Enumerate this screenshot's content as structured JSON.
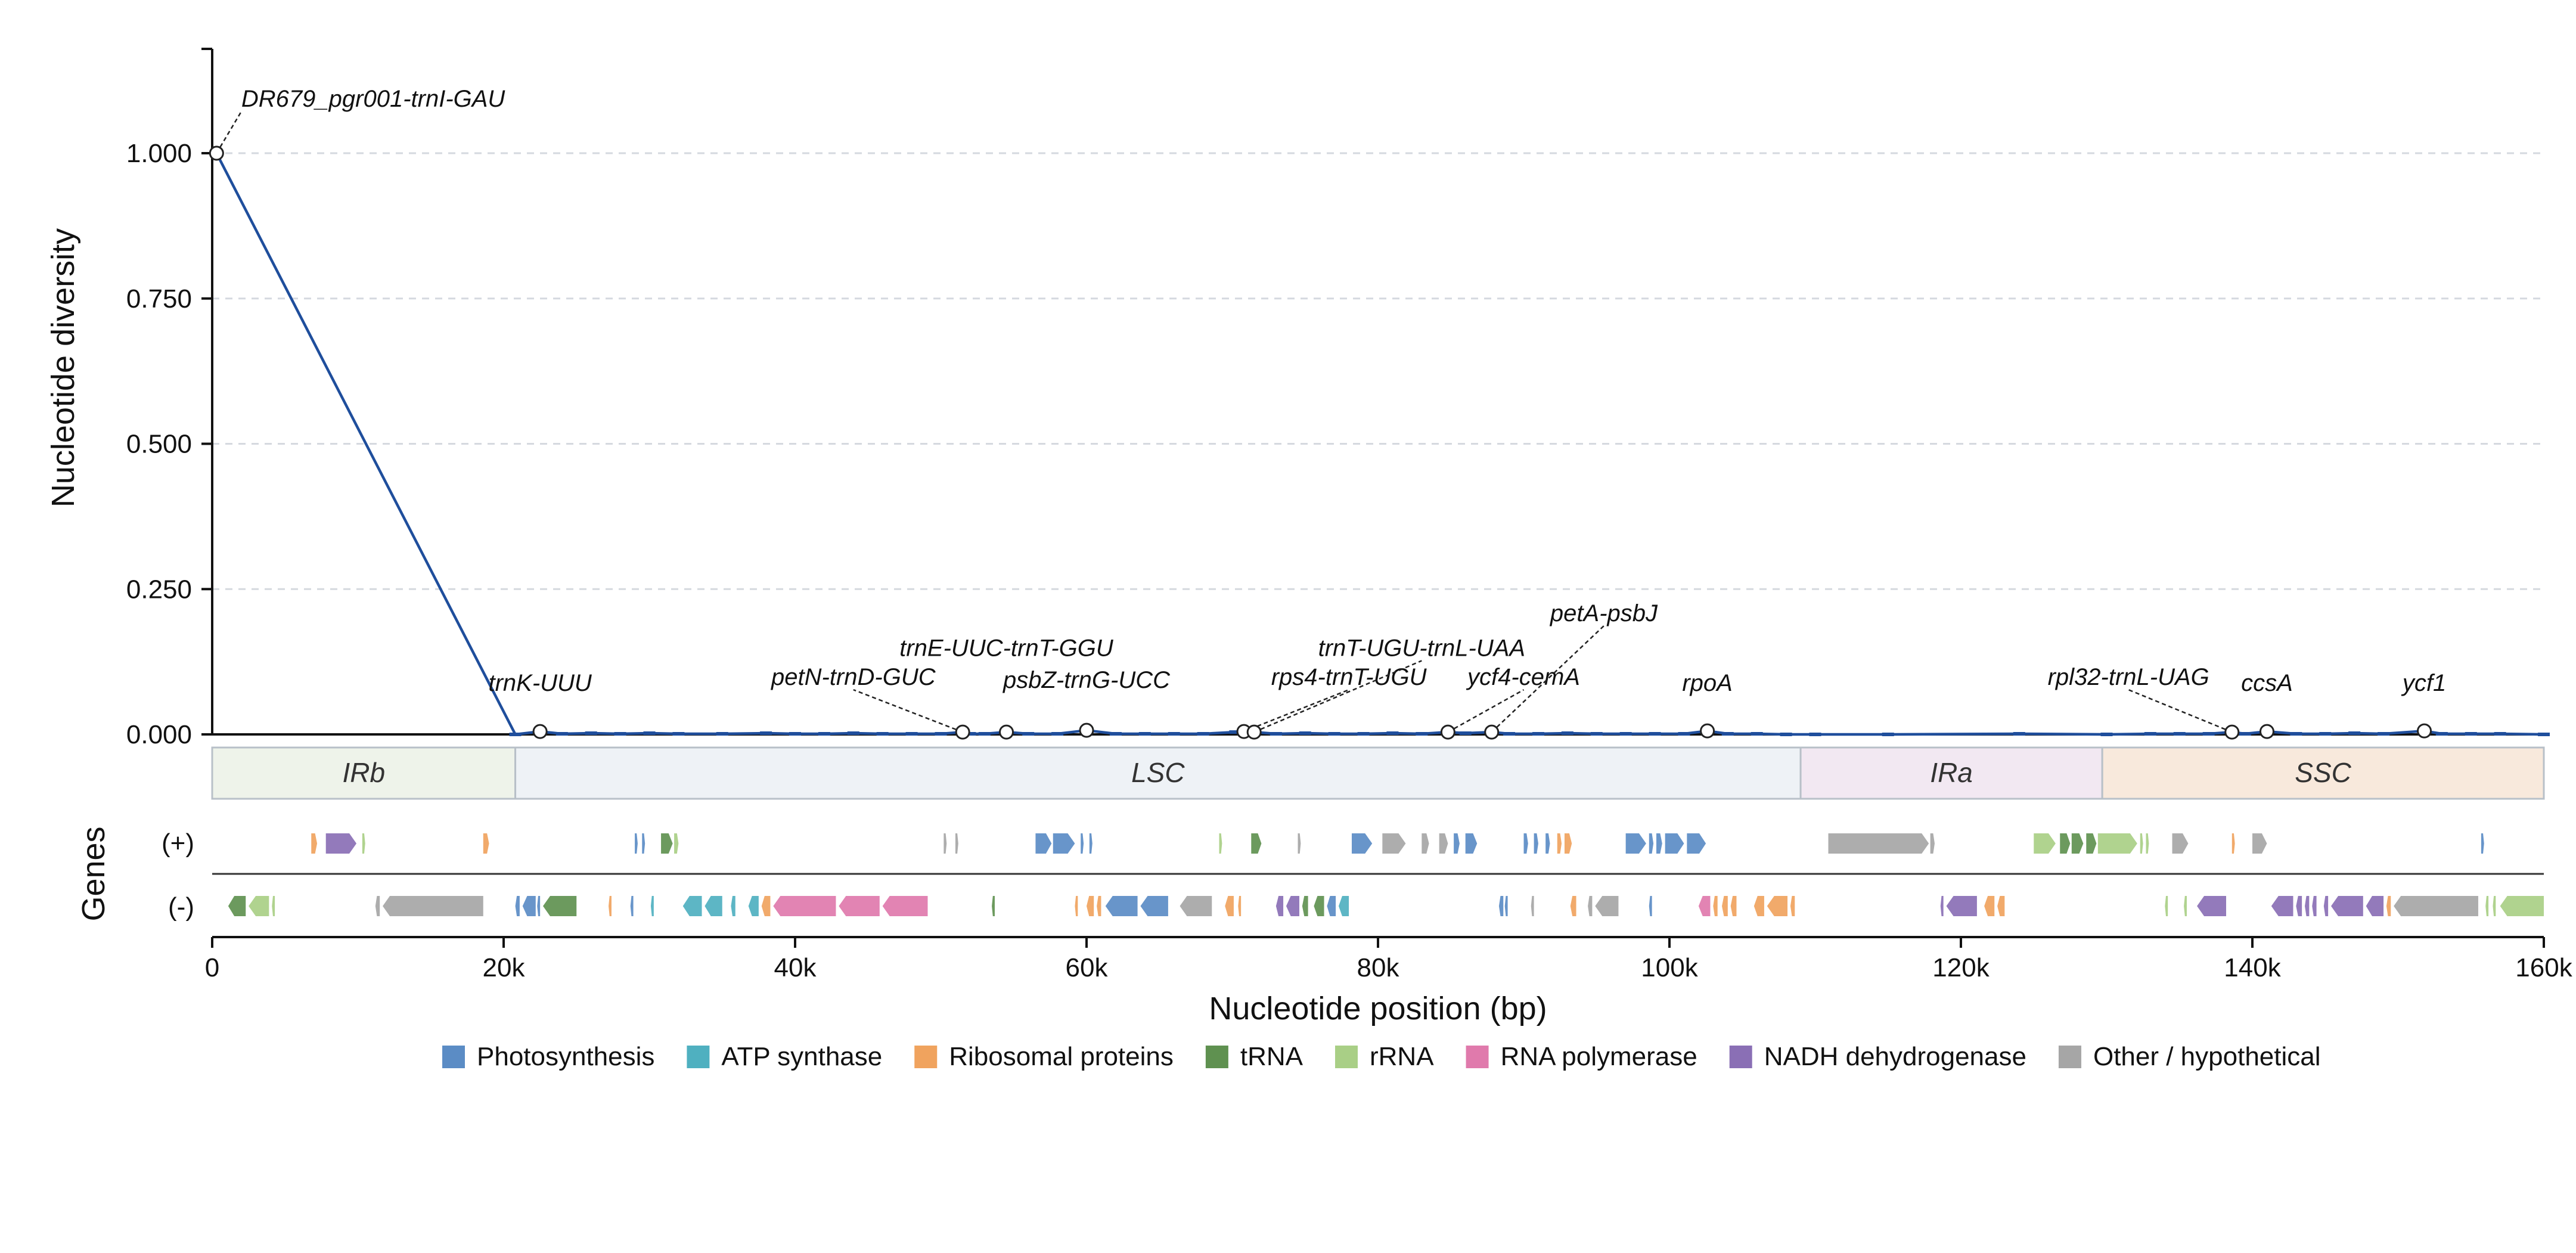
{
  "chart_data": {
    "type": "line",
    "ylabel": "Nucleotide diversity",
    "xlabel": "Nucleotide position (bp)",
    "genes_label": "Genes",
    "strand_labels": [
      "(+)",
      "(-)"
    ],
    "ylim": [
      0,
      1.2
    ],
    "xlim": [
      0,
      160000
    ],
    "grid": "horizontal dashed",
    "y_ticks": [
      0,
      0.25,
      0.5,
      0.75,
      1.0
    ],
    "y_tick_labels": [
      "0.000",
      "0.250",
      "0.500",
      "0.750",
      "1.000"
    ],
    "x_ticks": [
      0,
      20000,
      40000,
      60000,
      80000,
      100000,
      120000,
      140000,
      160000
    ],
    "x_tick_labels": [
      "0",
      "20k",
      "40k",
      "60k",
      "80k",
      "100k",
      "120k",
      "140k",
      "160k"
    ],
    "line_color": "#1f4e9c",
    "series": [
      {
        "x": [
          300,
          20800,
          22500,
          24000,
          26000,
          28000,
          30000,
          32000,
          35000,
          38000,
          40000,
          42000,
          44000,
          46000,
          48000,
          50000,
          51500,
          52000,
          53000,
          54500,
          56000,
          58000,
          60000,
          62000,
          64000,
          66000,
          68000,
          70200,
          70800,
          71500,
          73000,
          75000,
          77000,
          79000,
          81000,
          83000,
          84800,
          86000,
          87800,
          89000,
          91000,
          93000,
          95000,
          97000,
          99000,
          101000,
          102600,
          104000,
          106000,
          108000,
          110000,
          115000,
          124000,
          130000,
          133000,
          135000,
          137000,
          138600,
          139500,
          141000,
          143000,
          145000,
          147000,
          149000,
          151800,
          153000,
          155000,
          157000,
          160000
        ],
        "y": [
          1.0,
          0.0,
          0.005,
          0.001,
          0.002,
          0.001,
          0.002,
          0.001,
          0.001,
          0.002,
          0.001,
          0.001,
          0.002,
          0.001,
          0.001,
          0.001,
          0.004,
          0.001,
          0.001,
          0.004,
          0.001,
          0.001,
          0.007,
          0.001,
          0.001,
          0.001,
          0.001,
          0.004,
          0.005,
          0.004,
          0.001,
          0.002,
          0.001,
          0.001,
          0.002,
          0.001,
          0.004,
          0.002,
          0.004,
          0.001,
          0.001,
          0.002,
          0.001,
          0.001,
          0.001,
          0.001,
          0.006,
          0.001,
          0.001,
          0.0,
          0.0,
          0.0,
          0.001,
          0.0,
          0.001,
          0.001,
          0.001,
          0.004,
          0.001,
          0.005,
          0.001,
          0.001,
          0.002,
          0.001,
          0.006,
          0.001,
          0.001,
          0.001,
          0.0
        ]
      }
    ],
    "peaks": [
      {
        "label": "DR679_pgr001-trnI-GAU",
        "x": 300,
        "y": 1.0,
        "lx": 2000,
        "ly": 1.08,
        "leader": true
      },
      {
        "label": "trnK-UUU",
        "x": 22500,
        "y": 0.005,
        "lx": 22500,
        "ly": 0.075,
        "leader": false
      },
      {
        "label": "petN-trnD-GUC",
        "x": 51500,
        "y": 0.004,
        "lx": 44000,
        "ly": 0.085,
        "leader": true
      },
      {
        "label": "trnE-UUC-trnT-GGU",
        "x": 54500,
        "y": 0.004,
        "lx": 54500,
        "ly": 0.135,
        "leader": false
      },
      {
        "label": "psbZ-trnG-UCC",
        "x": 60000,
        "y": 0.007,
        "lx": 60000,
        "ly": 0.08,
        "leader": false
      },
      {
        "label": "rps4-trnT-UGU",
        "x": 70800,
        "y": 0.005,
        "lx": 78000,
        "ly": 0.085,
        "leader": true
      },
      {
        "label": "trnT-UGU-trnL-UAA",
        "x": 71500,
        "y": 0.004,
        "lx": 83000,
        "ly": 0.135,
        "leader": true
      },
      {
        "label": "ycf4-cemA",
        "x": 84800,
        "y": 0.004,
        "lx": 90000,
        "ly": 0.085,
        "leader": true
      },
      {
        "label": "petA-psbJ",
        "x": 87800,
        "y": 0.004,
        "lx": 95500,
        "ly": 0.195,
        "leader": true
      },
      {
        "label": "rpoA",
        "x": 102600,
        "y": 0.006,
        "lx": 102600,
        "ly": 0.075,
        "leader": false
      },
      {
        "label": "rpl32-trnL-UAG",
        "x": 138600,
        "y": 0.004,
        "lx": 131500,
        "ly": 0.085,
        "leader": true
      },
      {
        "label": "ccsA",
        "x": 141000,
        "y": 0.005,
        "lx": 141000,
        "ly": 0.075,
        "leader": false
      },
      {
        "label": "ycf1",
        "x": 151800,
        "y": 0.006,
        "lx": 151800,
        "ly": 0.075,
        "leader": false
      }
    ],
    "regions": [
      {
        "name": "IRb",
        "start": 0,
        "end": 20800,
        "color": "#eef3ea"
      },
      {
        "name": "LSC",
        "start": 20800,
        "end": 109000,
        "color": "#eef2f6"
      },
      {
        "name": "IRa",
        "start": 109000,
        "end": 129700,
        "color": "#f2e8f2"
      },
      {
        "name": "SSC",
        "start": 129700,
        "end": 160000,
        "color": "#f8e9dc"
      }
    ],
    "legend": [
      {
        "name": "Photosynthesis",
        "color": "#5b8cc5"
      },
      {
        "name": "ATP synthase",
        "color": "#4fb0c0"
      },
      {
        "name": "Ribosomal proteins",
        "color": "#f0a35e"
      },
      {
        "name": "tRNA",
        "color": "#5f9150"
      },
      {
        "name": "rRNA",
        "color": "#a9cf86"
      },
      {
        "name": "RNA polymerase",
        "color": "#e07aac"
      },
      {
        "name": "NADH dehydrogenase",
        "color": "#8a6fb5"
      },
      {
        "name": "Other / hypothetical",
        "color": "#a6a6a6"
      }
    ],
    "genes": [
      {
        "strand": "+",
        "start": 6800,
        "end": 7200,
        "cat": 2
      },
      {
        "strand": "+",
        "start": 7800,
        "end": 9900,
        "cat": 6
      },
      {
        "strand": "+",
        "start": 10300,
        "end": 10500,
        "cat": 4
      },
      {
        "strand": "+",
        "start": 18600,
        "end": 19000,
        "cat": 2
      },
      {
        "strand": "+",
        "start": 29000,
        "end": 29200,
        "cat": 0
      },
      {
        "strand": "+",
        "start": 29500,
        "end": 29700,
        "cat": 0
      },
      {
        "strand": "+",
        "start": 30800,
        "end": 31600,
        "cat": 3
      },
      {
        "strand": "+",
        "start": 31700,
        "end": 32000,
        "cat": 4
      },
      {
        "strand": "+",
        "start": 50200,
        "end": 50400,
        "cat": 7
      },
      {
        "strand": "+",
        "start": 51000,
        "end": 51200,
        "cat": 7
      },
      {
        "strand": "+",
        "start": 56500,
        "end": 57600,
        "cat": 0
      },
      {
        "strand": "+",
        "start": 57700,
        "end": 59200,
        "cat": 0
      },
      {
        "strand": "+",
        "start": 59600,
        "end": 59800,
        "cat": 0
      },
      {
        "strand": "+",
        "start": 60200,
        "end": 60400,
        "cat": 0
      },
      {
        "strand": "+",
        "start": 69100,
        "end": 69300,
        "cat": 4
      },
      {
        "strand": "+",
        "start": 71300,
        "end": 72000,
        "cat": 3
      },
      {
        "strand": "+",
        "start": 74500,
        "end": 74700,
        "cat": 7
      },
      {
        "strand": "+",
        "start": 78200,
        "end": 79600,
        "cat": 0
      },
      {
        "strand": "+",
        "start": 80300,
        "end": 81900,
        "cat": 7
      },
      {
        "strand": "+",
        "start": 83000,
        "end": 83500,
        "cat": 7
      },
      {
        "strand": "+",
        "start": 84200,
        "end": 84800,
        "cat": 7
      },
      {
        "strand": "+",
        "start": 85200,
        "end": 85600,
        "cat": 0
      },
      {
        "strand": "+",
        "start": 86000,
        "end": 86800,
        "cat": 0
      },
      {
        "strand": "+",
        "start": 90000,
        "end": 90300,
        "cat": 0
      },
      {
        "strand": "+",
        "start": 90700,
        "end": 91000,
        "cat": 0
      },
      {
        "strand": "+",
        "start": 91500,
        "end": 91800,
        "cat": 0
      },
      {
        "strand": "+",
        "start": 92300,
        "end": 92600,
        "cat": 2
      },
      {
        "strand": "+",
        "start": 92800,
        "end": 93300,
        "cat": 2
      },
      {
        "strand": "+",
        "start": 97000,
        "end": 98400,
        "cat": 0
      },
      {
        "strand": "+",
        "start": 98600,
        "end": 98900,
        "cat": 0
      },
      {
        "strand": "+",
        "start": 99100,
        "end": 99500,
        "cat": 0
      },
      {
        "strand": "+",
        "start": 99700,
        "end": 101000,
        "cat": 0
      },
      {
        "strand": "+",
        "start": 101200,
        "end": 102500,
        "cat": 0
      },
      {
        "strand": "+",
        "start": 110900,
        "end": 117800,
        "cat": 7
      },
      {
        "strand": "+",
        "start": 117900,
        "end": 118200,
        "cat": 7
      },
      {
        "strand": "+",
        "start": 125000,
        "end": 126500,
        "cat": 4
      },
      {
        "strand": "+",
        "start": 126800,
        "end": 127500,
        "cat": 3
      },
      {
        "strand": "+",
        "start": 127600,
        "end": 128400,
        "cat": 3
      },
      {
        "strand": "+",
        "start": 128600,
        "end": 129300,
        "cat": 3
      },
      {
        "strand": "+",
        "start": 129400,
        "end": 132100,
        "cat": 4
      },
      {
        "strand": "+",
        "start": 132300,
        "end": 132500,
        "cat": 4
      },
      {
        "strand": "+",
        "start": 132700,
        "end": 132900,
        "cat": 4
      },
      {
        "strand": "+",
        "start": 134500,
        "end": 135600,
        "cat": 7
      },
      {
        "strand": "+",
        "start": 138600,
        "end": 138800,
        "cat": 2
      },
      {
        "strand": "+",
        "start": 140000,
        "end": 141000,
        "cat": 7
      },
      {
        "strand": "+",
        "start": 155700,
        "end": 155900,
        "cat": 0
      },
      {
        "strand": "-",
        "start": 1100,
        "end": 2300,
        "cat": 3
      },
      {
        "strand": "-",
        "start": 2500,
        "end": 3900,
        "cat": 4
      },
      {
        "strand": "-",
        "start": 4100,
        "end": 4300,
        "cat": 4
      },
      {
        "strand": "-",
        "start": 11200,
        "end": 11500,
        "cat": 7
      },
      {
        "strand": "-",
        "start": 11700,
        "end": 18600,
        "cat": 7
      },
      {
        "strand": "-",
        "start": 20800,
        "end": 21100,
        "cat": 0
      },
      {
        "strand": "-",
        "start": 21300,
        "end": 22200,
        "cat": 0
      },
      {
        "strand": "-",
        "start": 22300,
        "end": 22500,
        "cat": 0
      },
      {
        "strand": "-",
        "start": 22700,
        "end": 25000,
        "cat": 3
      },
      {
        "strand": "-",
        "start": 27200,
        "end": 27400,
        "cat": 2
      },
      {
        "strand": "-",
        "start": 28700,
        "end": 28900,
        "cat": 0
      },
      {
        "strand": "-",
        "start": 30100,
        "end": 30300,
        "cat": 1
      },
      {
        "strand": "-",
        "start": 32300,
        "end": 33600,
        "cat": 1
      },
      {
        "strand": "-",
        "start": 33800,
        "end": 35000,
        "cat": 1
      },
      {
        "strand": "-",
        "start": 35600,
        "end": 35900,
        "cat": 1
      },
      {
        "strand": "-",
        "start": 36800,
        "end": 37500,
        "cat": 1
      },
      {
        "strand": "-",
        "start": 37700,
        "end": 38300,
        "cat": 2
      },
      {
        "strand": "-",
        "start": 38500,
        "end": 42800,
        "cat": 5
      },
      {
        "strand": "-",
        "start": 43000,
        "end": 45800,
        "cat": 5
      },
      {
        "strand": "-",
        "start": 46000,
        "end": 49100,
        "cat": 5
      },
      {
        "strand": "-",
        "start": 53500,
        "end": 53700,
        "cat": 3
      },
      {
        "strand": "-",
        "start": 59200,
        "end": 59400,
        "cat": 2
      },
      {
        "strand": "-",
        "start": 60000,
        "end": 60500,
        "cat": 2
      },
      {
        "strand": "-",
        "start": 60700,
        "end": 61000,
        "cat": 2
      },
      {
        "strand": "-",
        "start": 61300,
        "end": 63500,
        "cat": 0
      },
      {
        "strand": "-",
        "start": 63700,
        "end": 65600,
        "cat": 0
      },
      {
        "strand": "-",
        "start": 66400,
        "end": 68600,
        "cat": 7
      },
      {
        "strand": "-",
        "start": 69500,
        "end": 70100,
        "cat": 2
      },
      {
        "strand": "-",
        "start": 70400,
        "end": 70600,
        "cat": 2
      },
      {
        "strand": "-",
        "start": 73000,
        "end": 73500,
        "cat": 6
      },
      {
        "strand": "-",
        "start": 73700,
        "end": 74600,
        "cat": 6
      },
      {
        "strand": "-",
        "start": 74800,
        "end": 75200,
        "cat": 3
      },
      {
        "strand": "-",
        "start": 75600,
        "end": 76300,
        "cat": 3
      },
      {
        "strand": "-",
        "start": 76500,
        "end": 77100,
        "cat": 0
      },
      {
        "strand": "-",
        "start": 77300,
        "end": 78000,
        "cat": 1
      },
      {
        "strand": "-",
        "start": 88300,
        "end": 88600,
        "cat": 0
      },
      {
        "strand": "-",
        "start": 88700,
        "end": 88900,
        "cat": 0
      },
      {
        "strand": "-",
        "start": 90500,
        "end": 90700,
        "cat": 7
      },
      {
        "strand": "-",
        "start": 93200,
        "end": 93600,
        "cat": 2
      },
      {
        "strand": "-",
        "start": 94400,
        "end": 94700,
        "cat": 7
      },
      {
        "strand": "-",
        "start": 94900,
        "end": 96500,
        "cat": 7
      },
      {
        "strand": "-",
        "start": 98600,
        "end": 98800,
        "cat": 0
      },
      {
        "strand": "-",
        "start": 102000,
        "end": 102800,
        "cat": 5
      },
      {
        "strand": "-",
        "start": 103000,
        "end": 103300,
        "cat": 2
      },
      {
        "strand": "-",
        "start": 103600,
        "end": 104000,
        "cat": 2
      },
      {
        "strand": "-",
        "start": 104200,
        "end": 104600,
        "cat": 2
      },
      {
        "strand": "-",
        "start": 105800,
        "end": 106500,
        "cat": 2
      },
      {
        "strand": "-",
        "start": 106700,
        "end": 108100,
        "cat": 2
      },
      {
        "strand": "-",
        "start": 108300,
        "end": 108600,
        "cat": 2
      },
      {
        "strand": "-",
        "start": 118600,
        "end": 118800,
        "cat": 6
      },
      {
        "strand": "-",
        "start": 119000,
        "end": 121100,
        "cat": 6
      },
      {
        "strand": "-",
        "start": 121600,
        "end": 122300,
        "cat": 2
      },
      {
        "strand": "-",
        "start": 122500,
        "end": 123000,
        "cat": 2
      },
      {
        "strand": "-",
        "start": 134000,
        "end": 134200,
        "cat": 4
      },
      {
        "strand": "-",
        "start": 135300,
        "end": 135500,
        "cat": 4
      },
      {
        "strand": "-",
        "start": 136200,
        "end": 138200,
        "cat": 6
      },
      {
        "strand": "-",
        "start": 141300,
        "end": 142800,
        "cat": 6
      },
      {
        "strand": "-",
        "start": 143000,
        "end": 143400,
        "cat": 6
      },
      {
        "strand": "-",
        "start": 143600,
        "end": 143900,
        "cat": 6
      },
      {
        "strand": "-",
        "start": 144100,
        "end": 144400,
        "cat": 6
      },
      {
        "strand": "-",
        "start": 144900,
        "end": 145200,
        "cat": 6
      },
      {
        "strand": "-",
        "start": 145400,
        "end": 147600,
        "cat": 6
      },
      {
        "strand": "-",
        "start": 147800,
        "end": 149000,
        "cat": 6
      },
      {
        "strand": "-",
        "start": 149200,
        "end": 149500,
        "cat": 2
      },
      {
        "strand": "-",
        "start": 149700,
        "end": 155500,
        "cat": 7
      },
      {
        "strand": "-",
        "start": 156000,
        "end": 156200,
        "cat": 4
      },
      {
        "strand": "-",
        "start": 156500,
        "end": 156700,
        "cat": 4
      },
      {
        "strand": "-",
        "start": 157000,
        "end": 160000,
        "cat": 4
      }
    ]
  }
}
